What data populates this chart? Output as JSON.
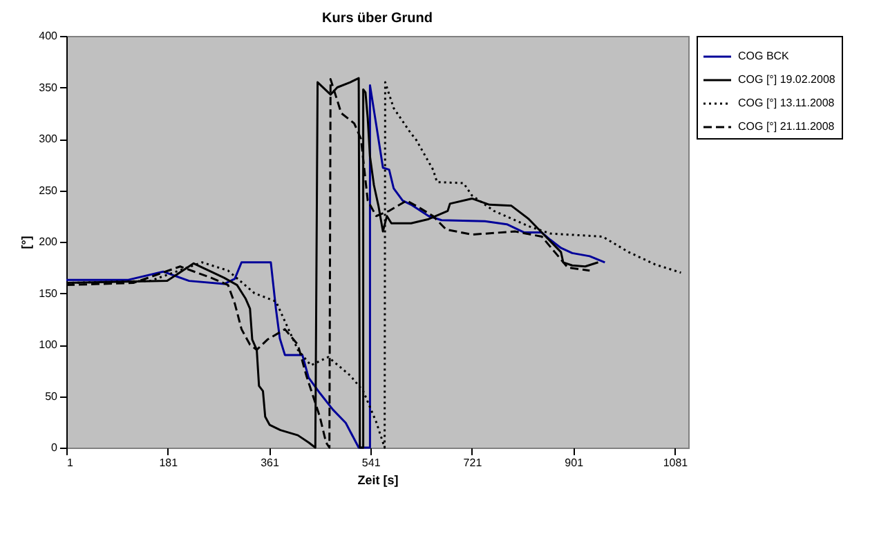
{
  "chart_data": {
    "type": "line",
    "title": "Kurs über Grund",
    "xlabel": "Zeit [s]",
    "ylabel": "[°]",
    "xlim": [
      1,
      1105
    ],
    "xticks": [
      1,
      181,
      361,
      541,
      721,
      901,
      1081
    ],
    "ylim": [
      0,
      400
    ],
    "yticks": [
      0,
      50,
      100,
      150,
      200,
      250,
      300,
      350,
      400
    ],
    "grid": false,
    "legend": "right",
    "marker": "none",
    "series": [
      {
        "name": "COG BCK",
        "color": "#000099",
        "line_style": "solid",
        "x": [
          1,
          111,
          173,
          219,
          281,
          300,
          312,
          364,
          373,
          380,
          389,
          420,
          431,
          451,
          474,
          497,
          520,
          540,
          540,
          551,
          563,
          574,
          582,
          598,
          613,
          644,
          667,
          744,
          783,
          814,
          845,
          860,
          879,
          899,
          930,
          957
        ],
        "values": [
          163,
          163,
          171,
          162,
          159,
          164,
          180,
          180,
          135,
          106,
          90,
          90,
          68,
          53,
          37,
          24,
          0,
          0,
          352,
          314,
          272,
          270,
          252,
          240,
          236,
          225,
          221,
          220,
          217,
          209,
          209,
          202,
          194,
          189,
          186,
          180
        ]
      },
      {
        "name": "COG [°] 19.02.2008",
        "color": "#000000",
        "line_style": "solid",
        "x": [
          1,
          180,
          227,
          281,
          304,
          319,
          327,
          331,
          339,
          343,
          350,
          354,
          362,
          381,
          412,
          431,
          443,
          447,
          470,
          482,
          505,
          520,
          522,
          528,
          528,
          532,
          536,
          540,
          547,
          555,
          563,
          570,
          578,
          613,
          644,
          678,
          682,
          721,
          752,
          791,
          822,
          852,
          879,
          883,
          899,
          922,
          945
        ],
        "values": [
          160,
          162,
          179,
          165,
          158,
          145,
          135,
          105,
          95,
          60,
          55,
          30,
          22,
          17,
          12,
          5,
          0,
          355,
          343,
          350,
          355,
          359,
          0,
          0,
          348,
          345,
          320,
          283,
          255,
          235,
          210,
          225,
          218,
          218,
          222,
          230,
          237,
          242,
          236,
          235,
          222,
          205,
          190,
          180,
          177,
          176,
          180
        ]
      },
      {
        "name": "COG [°] 13.11.2008",
        "color": "#000000",
        "line_style": "dotted",
        "x": [
          1,
          150,
          242,
          288,
          335,
          373,
          412,
          435,
          466,
          505,
          528,
          551,
          566,
          567,
          582,
          613,
          621,
          652,
          659,
          706,
          721,
          760,
          822,
          860,
          953,
          999,
          1046,
          1092
        ],
        "values": [
          160,
          162,
          180,
          172,
          150,
          142,
          95,
          80,
          88,
          70,
          55,
          25,
          0,
          355,
          330,
          305,
          300,
          270,
          258,
          257,
          245,
          230,
          215,
          208,
          205,
          190,
          178,
          170
        ]
      },
      {
        "name": "COG [°] 21.11.2008",
        "color": "#000000",
        "line_style": "dashed",
        "x": [
          1,
          120,
          203,
          258,
          288,
          300,
          312,
          327,
          339,
          358,
          389,
          412,
          427,
          451,
          462,
          468,
          470,
          489,
          512,
          524,
          536,
          551,
          574,
          605,
          628,
          652,
          675,
          721,
          798,
          845,
          868,
          891,
          930
        ],
        "values": [
          158,
          160,
          176,
          165,
          158,
          140,
          115,
          100,
          95,
          105,
          115,
          100,
          70,
          30,
          5,
          0,
          358,
          325,
          315,
          300,
          240,
          225,
          230,
          240,
          233,
          225,
          212,
          207,
          210,
          205,
          190,
          175,
          172
        ]
      }
    ]
  }
}
